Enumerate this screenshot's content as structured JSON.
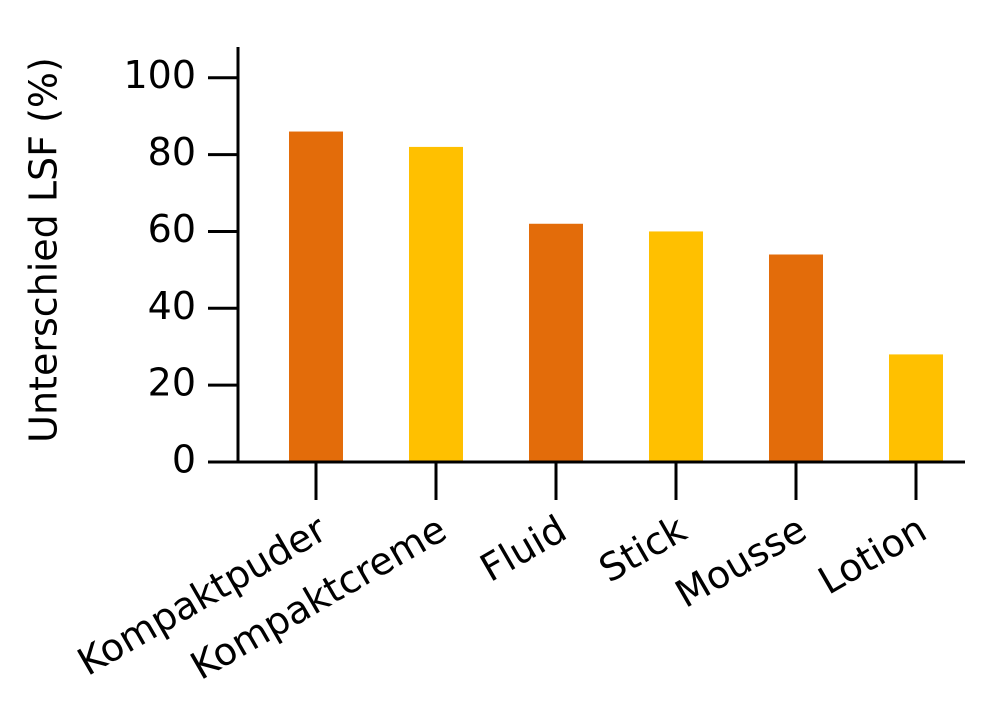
{
  "chart_data": {
    "type": "bar",
    "y_label": "Unterschied LSF (%)",
    "categories": [
      "Kompaktpuder",
      "Kompaktcreme",
      "Fluid",
      "Stick",
      "Mousse",
      "Lotion"
    ],
    "values": [
      86,
      82,
      62,
      60,
      54,
      28
    ],
    "colors": [
      "#e36c0a",
      "#ffc000",
      "#e36c0a",
      "#ffc000",
      "#e36c0a",
      "#ffc000"
    ],
    "ylim": [
      0,
      108
    ],
    "yticks": [
      0,
      20,
      40,
      60,
      80,
      100
    ],
    "grid": false
  }
}
